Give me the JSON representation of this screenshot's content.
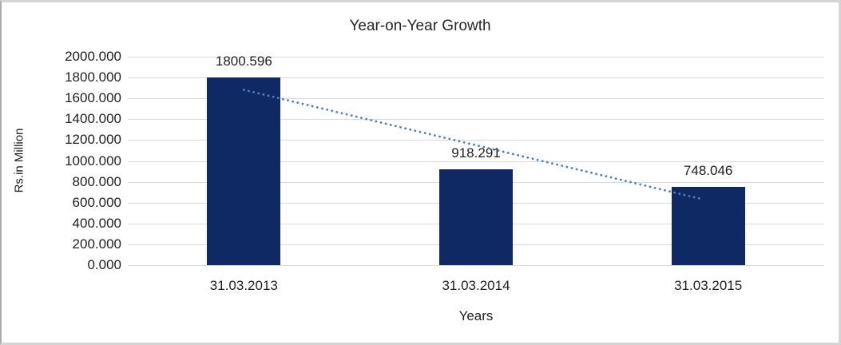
{
  "chart_data": {
    "type": "bar",
    "title": "Year-on-Year Growth",
    "xlabel": "Years",
    "ylabel": "Rs.in Million",
    "categories": [
      "31.03.2013",
      "31.03.2014",
      "31.03.2015"
    ],
    "values": [
      1800.596,
      918.291,
      748.046
    ],
    "data_labels": [
      "1800.596",
      "918.291",
      "748.046"
    ],
    "ylim": [
      0,
      2000
    ],
    "ytick_step": 200,
    "ytick_labels": [
      "2000.000",
      "1800.000",
      "1600.000",
      "1400.000",
      "1200.000",
      "1000.000",
      "800.000",
      "600.000",
      "400.000",
      "200.000",
      "0.000"
    ],
    "grid": true,
    "legend": "none",
    "trendline": {
      "type": "linear",
      "style": "dotted",
      "start_value": 1682,
      "end_value": 630
    }
  },
  "colors": {
    "bar_fill": "#0E2964",
    "trendline": "#4F81BD",
    "gridline": "#D9D9D9",
    "text": "#1F1F1F",
    "frame_border": "#D5D5D5",
    "background": "#FFFFFF"
  }
}
